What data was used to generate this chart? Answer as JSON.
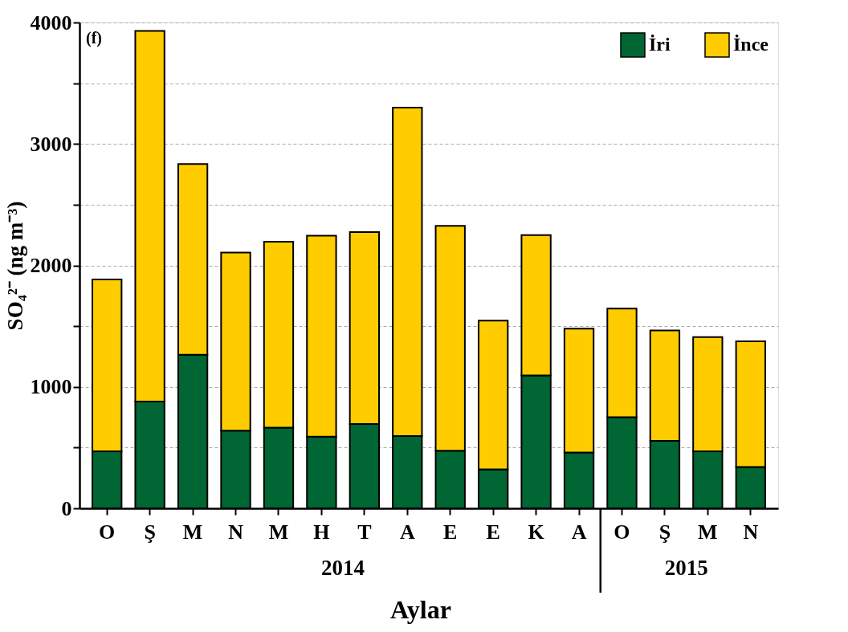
{
  "chart_data": {
    "type": "bar",
    "stacked": true,
    "ylabel": "SO₄²⁻ (ng m⁻³)",
    "xlabel": "Aylar",
    "categories": [
      "O",
      "Ş",
      "M",
      "N",
      "M",
      "H",
      "T",
      "A",
      "E",
      "E",
      "K",
      "A",
      "O",
      "Ş",
      "M",
      "N"
    ],
    "series": [
      {
        "name": "İri",
        "color": "#006633",
        "values": [
          470,
          880,
          1265,
          640,
          665,
          590,
          695,
          595,
          475,
          320,
          1095,
          460,
          750,
          555,
          470,
          340
        ]
      },
      {
        "name": "İnce",
        "color": "#ffcc00",
        "values": [
          1415,
          3050,
          1570,
          1465,
          1530,
          1655,
          1580,
          2705,
          1850,
          1225,
          1155,
          1020,
          895,
          910,
          940,
          1035
        ]
      }
    ],
    "ylim": [
      0,
      4000
    ],
    "yticks": [
      0,
      {
        "value": 500,
        "label": null
      },
      1000,
      {
        "value": 1500,
        "label": null
      },
      2000,
      {
        "value": 2500,
        "label": null
      },
      3000,
      {
        "value": 3500,
        "label": null
      },
      4000
    ],
    "grid": "y",
    "legend": "top right",
    "annotations": [
      "(f)",
      "2014",
      "2015"
    ]
  }
}
